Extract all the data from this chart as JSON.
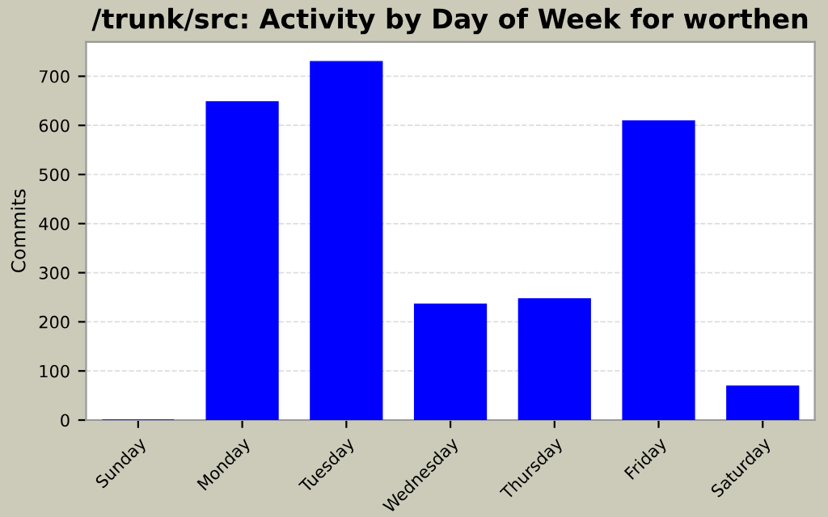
{
  "chart_data": {
    "type": "bar",
    "title": "/trunk/src: Activity by Day of Week for worthen",
    "ylabel": "Commits",
    "categories": [
      "Sunday",
      "Monday",
      "Tuesday",
      "Wednesday",
      "Thursday",
      "Friday",
      "Saturday"
    ],
    "values": [
      0,
      648,
      730,
      236,
      247,
      609,
      69
    ],
    "color": "#0000ff",
    "ylim": [
      0,
      770
    ],
    "yticks": [
      0,
      100,
      200,
      300,
      400,
      500,
      600,
      700
    ],
    "grid": "y",
    "legend": false
  }
}
